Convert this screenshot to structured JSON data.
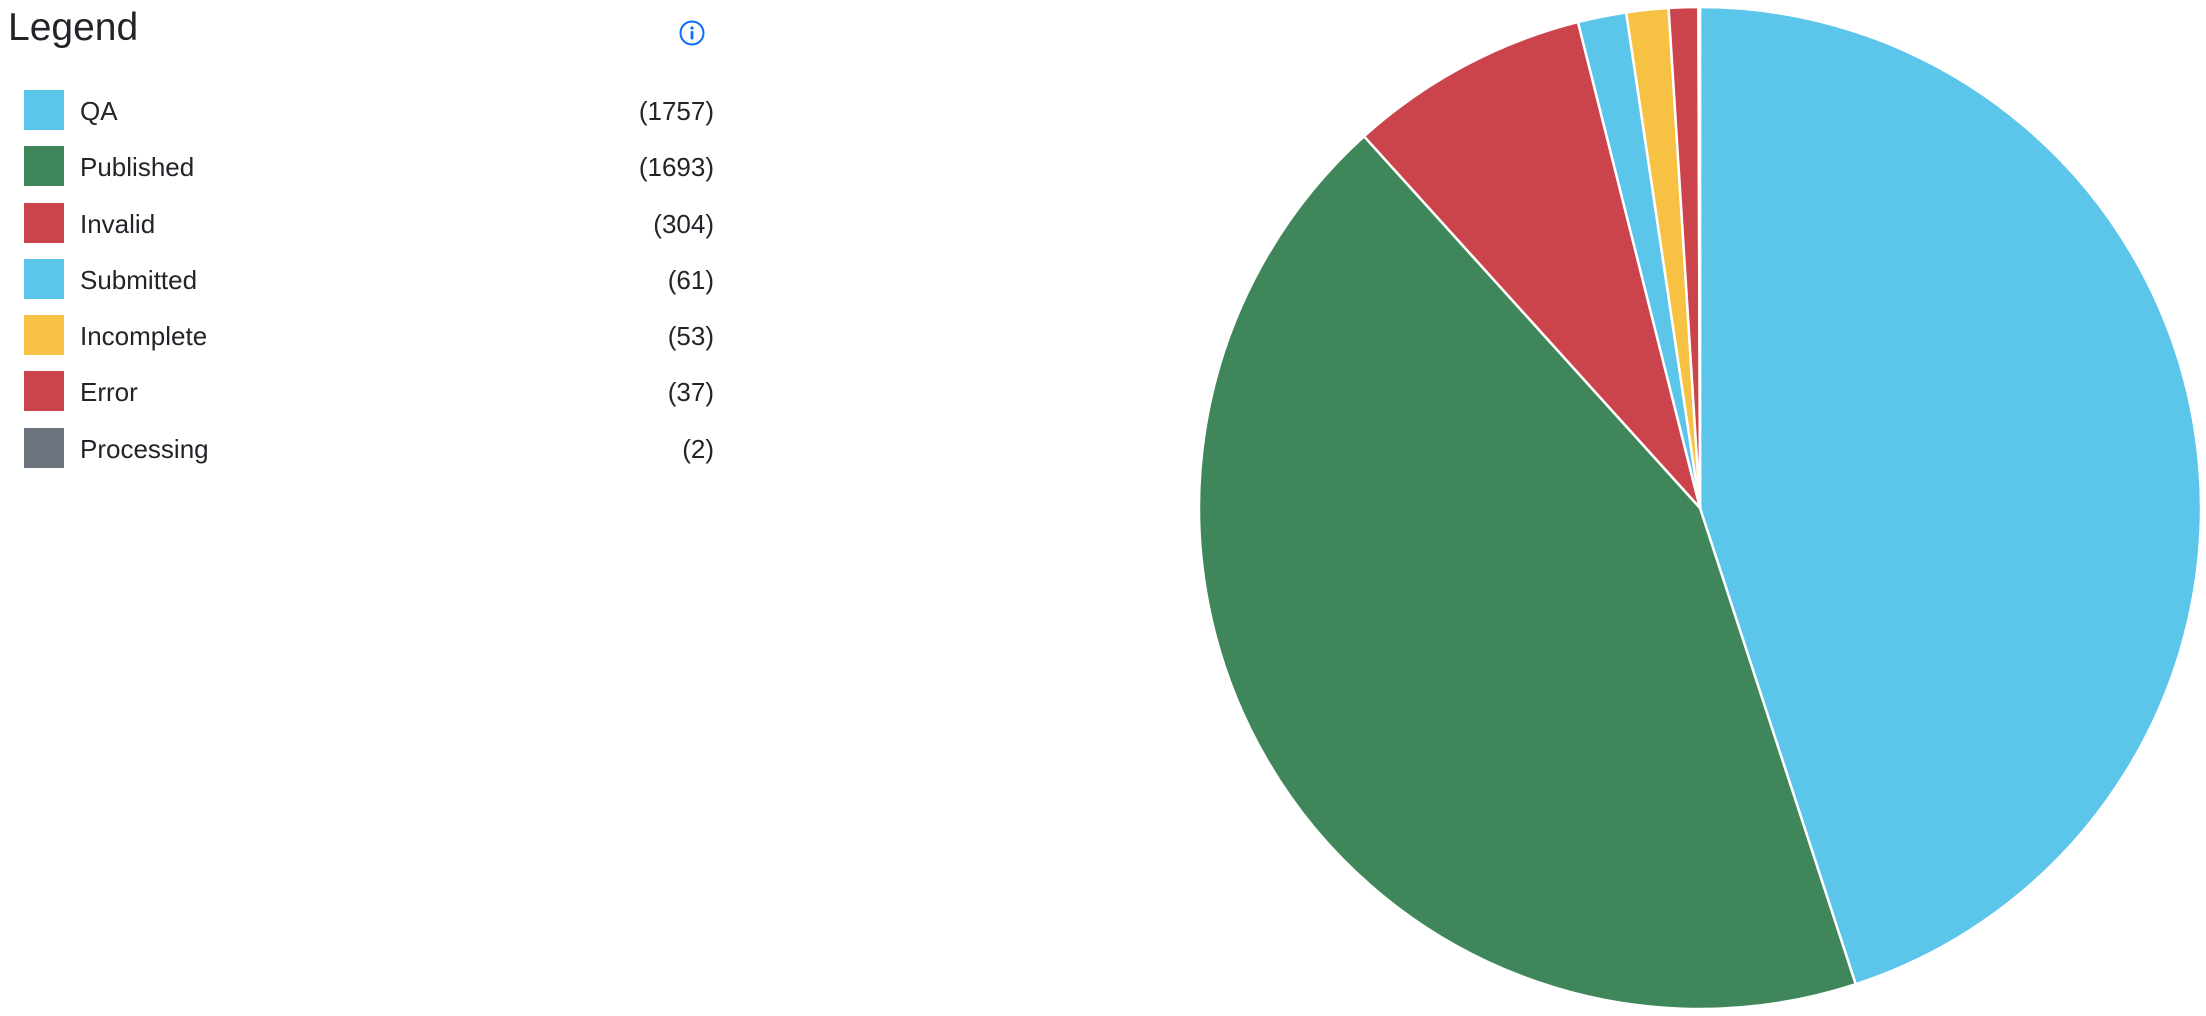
{
  "legend": {
    "title": "Legend",
    "info_icon": "info-circle-icon"
  },
  "colors": {
    "info": "#0d6efd",
    "separator": "#ffffff"
  },
  "chart_data": {
    "type": "pie",
    "title": "",
    "legend_position": "left",
    "start_angle_deg": 0,
    "direction": "clockwise",
    "slices": [
      {
        "label": "QA",
        "value": 1757,
        "count_text": "(1757)",
        "color": "#5bc5ea"
      },
      {
        "label": "Published",
        "value": 1693,
        "count_text": "(1693)",
        "color": "#3f865a"
      },
      {
        "label": "Invalid",
        "value": 304,
        "count_text": "(304)",
        "color": "#cb444c"
      },
      {
        "label": "Submitted",
        "value": 61,
        "count_text": "(61)",
        "color": "#5bc5ea"
      },
      {
        "label": "Incomplete",
        "value": 53,
        "count_text": "(53)",
        "color": "#f7c244"
      },
      {
        "label": "Error",
        "value": 37,
        "count_text": "(37)",
        "color": "#cb444c"
      },
      {
        "label": "Processing",
        "value": 2,
        "count_text": "(2)",
        "color": "#6c757d"
      }
    ]
  }
}
